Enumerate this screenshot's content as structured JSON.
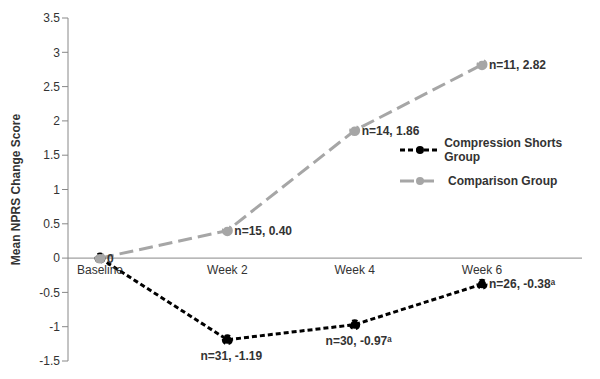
{
  "chart_data": {
    "type": "line",
    "y_label": "Mean NPRS Change Score",
    "categories": [
      "Baseline",
      "Week 2",
      "Week 4",
      "Week 6"
    ],
    "series": [
      {
        "name": "Compression Shorts Group",
        "color": "#000000",
        "line_style": "dashed",
        "marker": "circle",
        "values": [
          0,
          -1.19,
          -0.97,
          -0.38
        ],
        "value_labels": [
          "0",
          "n=31, -1.19",
          "n=30, -0.97ᵃ",
          "n=26, -0.38ᵃ"
        ]
      },
      {
        "name": "Comparison Group",
        "color": "#a6a6a6",
        "line_style": "long_dash",
        "marker": "circle",
        "values": [
          0,
          0.4,
          1.86,
          2.82
        ],
        "value_labels": [
          null,
          "n=15, 0.40",
          "n=14, 1.86",
          "n=11, 2.82"
        ]
      }
    ],
    "ylim": [
      -1.5,
      3.5
    ],
    "yticks": [
      -1.5,
      -1,
      -0.5,
      0,
      0.5,
      1,
      1.5,
      2,
      2.5,
      3,
      3.5
    ],
    "grid": false,
    "legend": "right",
    "data_labels": true
  }
}
